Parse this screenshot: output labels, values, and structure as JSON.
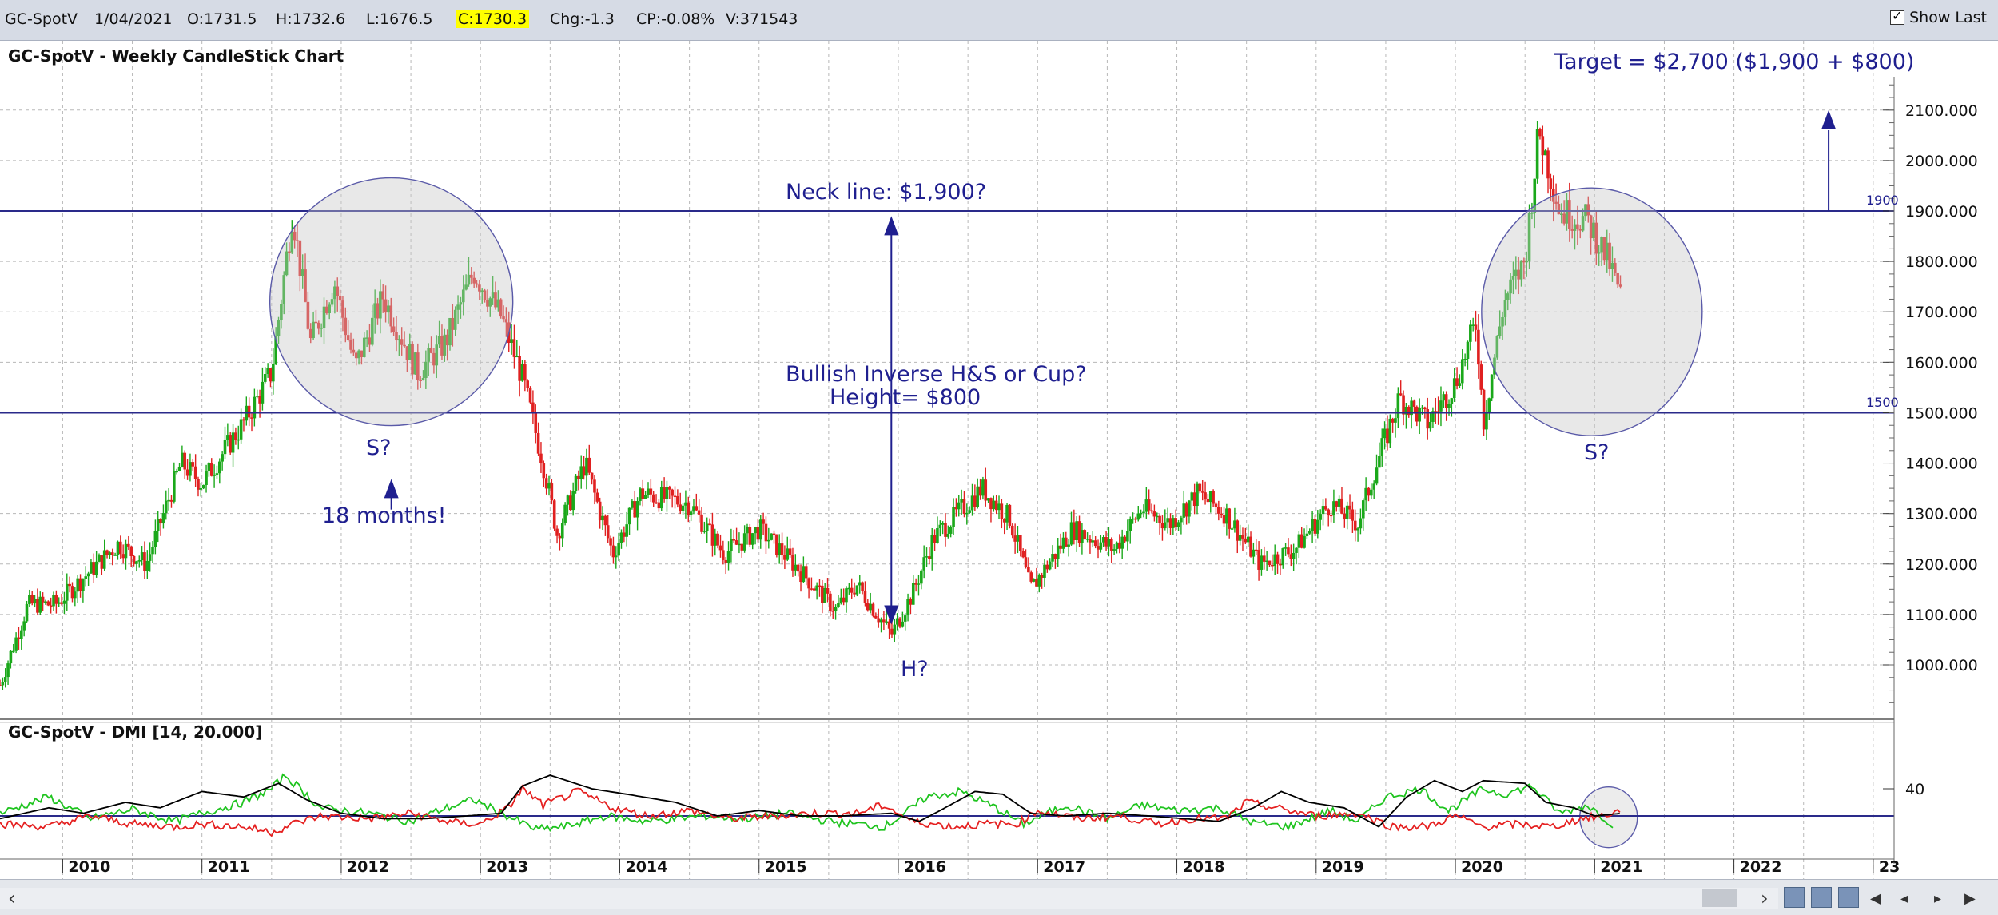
{
  "quote_bar": {
    "symbol": "GC-SpotV",
    "date": "1/04/2021",
    "open": "O:1731.5",
    "high": "H:1732.6",
    "low": "L:1676.5",
    "close": "C:1730.3",
    "change": "Chg:-1.3",
    "change_pct": "CP:-0.08%",
    "volume": "V:371543",
    "show_last_label": "Show Last",
    "show_last_checked": true
  },
  "chart_data": [
    {
      "type": "candlestick",
      "title": "GC-SpotV - Weekly CandleStick Chart",
      "x_ticks": [
        "2010",
        "2011",
        "2012",
        "2013",
        "2014",
        "2015",
        "2016",
        "2017",
        "2018",
        "2019",
        "2020",
        "2021",
        "2022",
        "23"
      ],
      "y_ticks": [
        "1000.000",
        "1100.000",
        "1200.000",
        "1300.000",
        "1400.000",
        "1500.000",
        "1600.000",
        "1700.000",
        "1800.000",
        "1900.000",
        "2000.000",
        "2100.000"
      ],
      "ylim": [
        900,
        2200
      ],
      "x_range": [
        2009.55,
        2023.15
      ],
      "up_color": "#1aa81a",
      "down_color": "#e02020",
      "price_path": [
        [
          2009.55,
          960
        ],
        [
          2009.75,
          1120
        ],
        [
          2009.95,
          1120
        ],
        [
          2010.4,
          1240
        ],
        [
          2010.6,
          1200
        ],
        [
          2010.85,
          1400
        ],
        [
          2011.0,
          1360
        ],
        [
          2011.3,
          1480
        ],
        [
          2011.5,
          1580
        ],
        [
          2011.65,
          1900
        ],
        [
          2011.78,
          1640
        ],
        [
          2011.95,
          1760
        ],
        [
          2012.1,
          1590
        ],
        [
          2012.3,
          1730
        ],
        [
          2012.55,
          1580
        ],
        [
          2012.75,
          1640
        ],
        [
          2012.95,
          1780
        ],
        [
          2013.15,
          1690
        ],
        [
          2013.3,
          1570
        ],
        [
          2013.45,
          1400
        ],
        [
          2013.55,
          1260
        ],
        [
          2013.75,
          1400
        ],
        [
          2013.95,
          1220
        ],
        [
          2014.15,
          1340
        ],
        [
          2014.5,
          1320
        ],
        [
          2014.75,
          1220
        ],
        [
          2015.0,
          1270
        ],
        [
          2015.25,
          1200
        ],
        [
          2015.55,
          1110
        ],
        [
          2015.7,
          1160
        ],
        [
          2015.95,
          1060
        ],
        [
          2016.1,
          1140
        ],
        [
          2016.25,
          1250
        ],
        [
          2016.6,
          1350
        ],
        [
          2016.8,
          1290
        ],
        [
          2016.95,
          1150
        ],
        [
          2017.25,
          1270
        ],
        [
          2017.55,
          1230
        ],
        [
          2017.75,
          1310
        ],
        [
          2017.95,
          1280
        ],
        [
          2018.15,
          1340
        ],
        [
          2018.35,
          1300
        ],
        [
          2018.6,
          1200
        ],
        [
          2018.85,
          1230
        ],
        [
          2019.1,
          1320
        ],
        [
          2019.3,
          1280
        ],
        [
          2019.45,
          1410
        ],
        [
          2019.6,
          1530
        ],
        [
          2019.8,
          1480
        ],
        [
          2020.0,
          1560
        ],
        [
          2020.15,
          1680
        ],
        [
          2020.2,
          1480
        ],
        [
          2020.35,
          1720
        ],
        [
          2020.5,
          1800
        ],
        [
          2020.6,
          2060
        ],
        [
          2020.75,
          1900
        ],
        [
          2020.95,
          1880
        ],
        [
          2021.1,
          1800
        ],
        [
          2021.2,
          1720
        ]
      ],
      "horizontal_lines": [
        {
          "value": 1900,
          "label": "1900"
        },
        {
          "value": 1500,
          "label": "1500"
        }
      ],
      "annotations": {
        "target": "Target = $2,700 ($1,900 + $800)",
        "neckline": "Neck line: $1,900?",
        "pattern_line1": "Bullish Inverse H&S or Cup?",
        "pattern_line2": "Height= $800",
        "left_shoulder": "S?",
        "months": "18 months!",
        "head": "H?",
        "right_shoulder": "S?"
      },
      "annotation_color": "#1f1f8f"
    },
    {
      "type": "line",
      "title": "GC-SpotV - DMI [14, 20.000]",
      "y_ticks": [
        "40"
      ],
      "threshold": 20,
      "ylim": [
        5,
        55
      ],
      "series": [
        {
          "color": "#1fc41f",
          "values": [
            [
              2009.55,
              22
            ],
            [
              2009.9,
              34
            ],
            [
              2010.2,
              18
            ],
            [
              2010.5,
              25
            ],
            [
              2010.8,
              16
            ],
            [
              2011.0,
              22
            ],
            [
              2011.3,
              30
            ],
            [
              2011.5,
              40
            ],
            [
              2011.6,
              50
            ],
            [
              2011.85,
              26
            ],
            [
              2012.2,
              22
            ],
            [
              2012.5,
              16
            ],
            [
              2012.7,
              24
            ],
            [
              2012.95,
              32
            ],
            [
              2013.15,
              22
            ],
            [
              2013.4,
              10
            ],
            [
              2013.6,
              12
            ],
            [
              2013.9,
              20
            ],
            [
              2014.2,
              16
            ],
            [
              2014.6,
              20
            ],
            [
              2014.9,
              18
            ],
            [
              2015.2,
              22
            ],
            [
              2015.5,
              16
            ],
            [
              2015.9,
              12
            ],
            [
              2016.05,
              22
            ],
            [
              2016.2,
              34
            ],
            [
              2016.45,
              38
            ],
            [
              2016.7,
              26
            ],
            [
              2016.9,
              14
            ],
            [
              2017.2,
              28
            ],
            [
              2017.5,
              18
            ],
            [
              2017.75,
              28
            ],
            [
              2018.0,
              24
            ],
            [
              2018.3,
              26
            ],
            [
              2018.55,
              15
            ],
            [
              2018.8,
              12
            ],
            [
              2019.1,
              24
            ],
            [
              2019.3,
              16
            ],
            [
              2019.5,
              34
            ],
            [
              2019.75,
              40
            ],
            [
              2019.95,
              24
            ],
            [
              2020.2,
              40
            ],
            [
              2020.35,
              36
            ],
            [
              2020.55,
              42
            ],
            [
              2020.75,
              22
            ],
            [
              2020.95,
              28
            ],
            [
              2021.15,
              12
            ]
          ]
        },
        {
          "color": "#e52020",
          "values": [
            [
              2009.55,
              14
            ],
            [
              2009.9,
              12
            ],
            [
              2010.2,
              20
            ],
            [
              2010.5,
              14
            ],
            [
              2010.8,
              12
            ],
            [
              2011.0,
              14
            ],
            [
              2011.3,
              12
            ],
            [
              2011.5,
              8
            ],
            [
              2011.65,
              14
            ],
            [
              2011.85,
              20
            ],
            [
              2012.2,
              18
            ],
            [
              2012.5,
              22
            ],
            [
              2012.8,
              15
            ],
            [
              2013.0,
              14
            ],
            [
              2013.2,
              26
            ],
            [
              2013.3,
              40
            ],
            [
              2013.45,
              28
            ],
            [
              2013.7,
              38
            ],
            [
              2013.95,
              26
            ],
            [
              2014.2,
              20
            ],
            [
              2014.5,
              24
            ],
            [
              2014.8,
              18
            ],
            [
              2015.1,
              20
            ],
            [
              2015.4,
              22
            ],
            [
              2015.7,
              22
            ],
            [
              2015.9,
              28
            ],
            [
              2016.1,
              16
            ],
            [
              2016.4,
              12
            ],
            [
              2016.6,
              14
            ],
            [
              2016.85,
              14
            ],
            [
              2017.0,
              24
            ],
            [
              2017.3,
              18
            ],
            [
              2017.6,
              20
            ],
            [
              2017.85,
              14
            ],
            [
              2018.1,
              18
            ],
            [
              2018.35,
              18
            ],
            [
              2018.5,
              30
            ],
            [
              2018.7,
              26
            ],
            [
              2019.0,
              20
            ],
            [
              2019.3,
              22
            ],
            [
              2019.55,
              12
            ],
            [
              2019.8,
              12
            ],
            [
              2020.0,
              20
            ],
            [
              2020.2,
              12
            ],
            [
              2020.45,
              14
            ],
            [
              2020.7,
              12
            ],
            [
              2020.9,
              18
            ],
            [
              2021.05,
              20
            ],
            [
              2021.2,
              24
            ]
          ]
        },
        {
          "color": "#000000",
          "values": [
            [
              2009.55,
              18
            ],
            [
              2009.9,
              26
            ],
            [
              2010.15,
              22
            ],
            [
              2010.45,
              30
            ],
            [
              2010.7,
              26
            ],
            [
              2011.0,
              38
            ],
            [
              2011.3,
              34
            ],
            [
              2011.55,
              44
            ],
            [
              2011.75,
              32
            ],
            [
              2012.0,
              22
            ],
            [
              2012.3,
              18
            ],
            [
              2012.6,
              18
            ],
            [
              2012.9,
              20
            ],
            [
              2013.15,
              22
            ],
            [
              2013.3,
              42
            ],
            [
              2013.5,
              50
            ],
            [
              2013.8,
              40
            ],
            [
              2014.05,
              36
            ],
            [
              2014.4,
              30
            ],
            [
              2014.7,
              20
            ],
            [
              2015.0,
              24
            ],
            [
              2015.3,
              20
            ],
            [
              2015.6,
              20
            ],
            [
              2015.95,
              22
            ],
            [
              2016.15,
              16
            ],
            [
              2016.3,
              24
            ],
            [
              2016.55,
              38
            ],
            [
              2016.75,
              36
            ],
            [
              2016.95,
              22
            ],
            [
              2017.2,
              20
            ],
            [
              2017.5,
              22
            ],
            [
              2017.8,
              20
            ],
            [
              2018.05,
              18
            ],
            [
              2018.3,
              16
            ],
            [
              2018.55,
              26
            ],
            [
              2018.75,
              38
            ],
            [
              2018.95,
              30
            ],
            [
              2019.2,
              26
            ],
            [
              2019.45,
              12
            ],
            [
              2019.65,
              34
            ],
            [
              2019.85,
              46
            ],
            [
              2020.05,
              38
            ],
            [
              2020.2,
              46
            ],
            [
              2020.5,
              44
            ],
            [
              2020.65,
              30
            ],
            [
              2020.85,
              26
            ],
            [
              2021.0,
              20
            ],
            [
              2021.2,
              22
            ]
          ]
        }
      ]
    }
  ],
  "footer": {
    "scroll_left": "‹",
    "scroll_right": "›",
    "nav_first": "◀",
    "nav_prev": "◂",
    "nav_next": "▸",
    "nav_last": "▶"
  }
}
